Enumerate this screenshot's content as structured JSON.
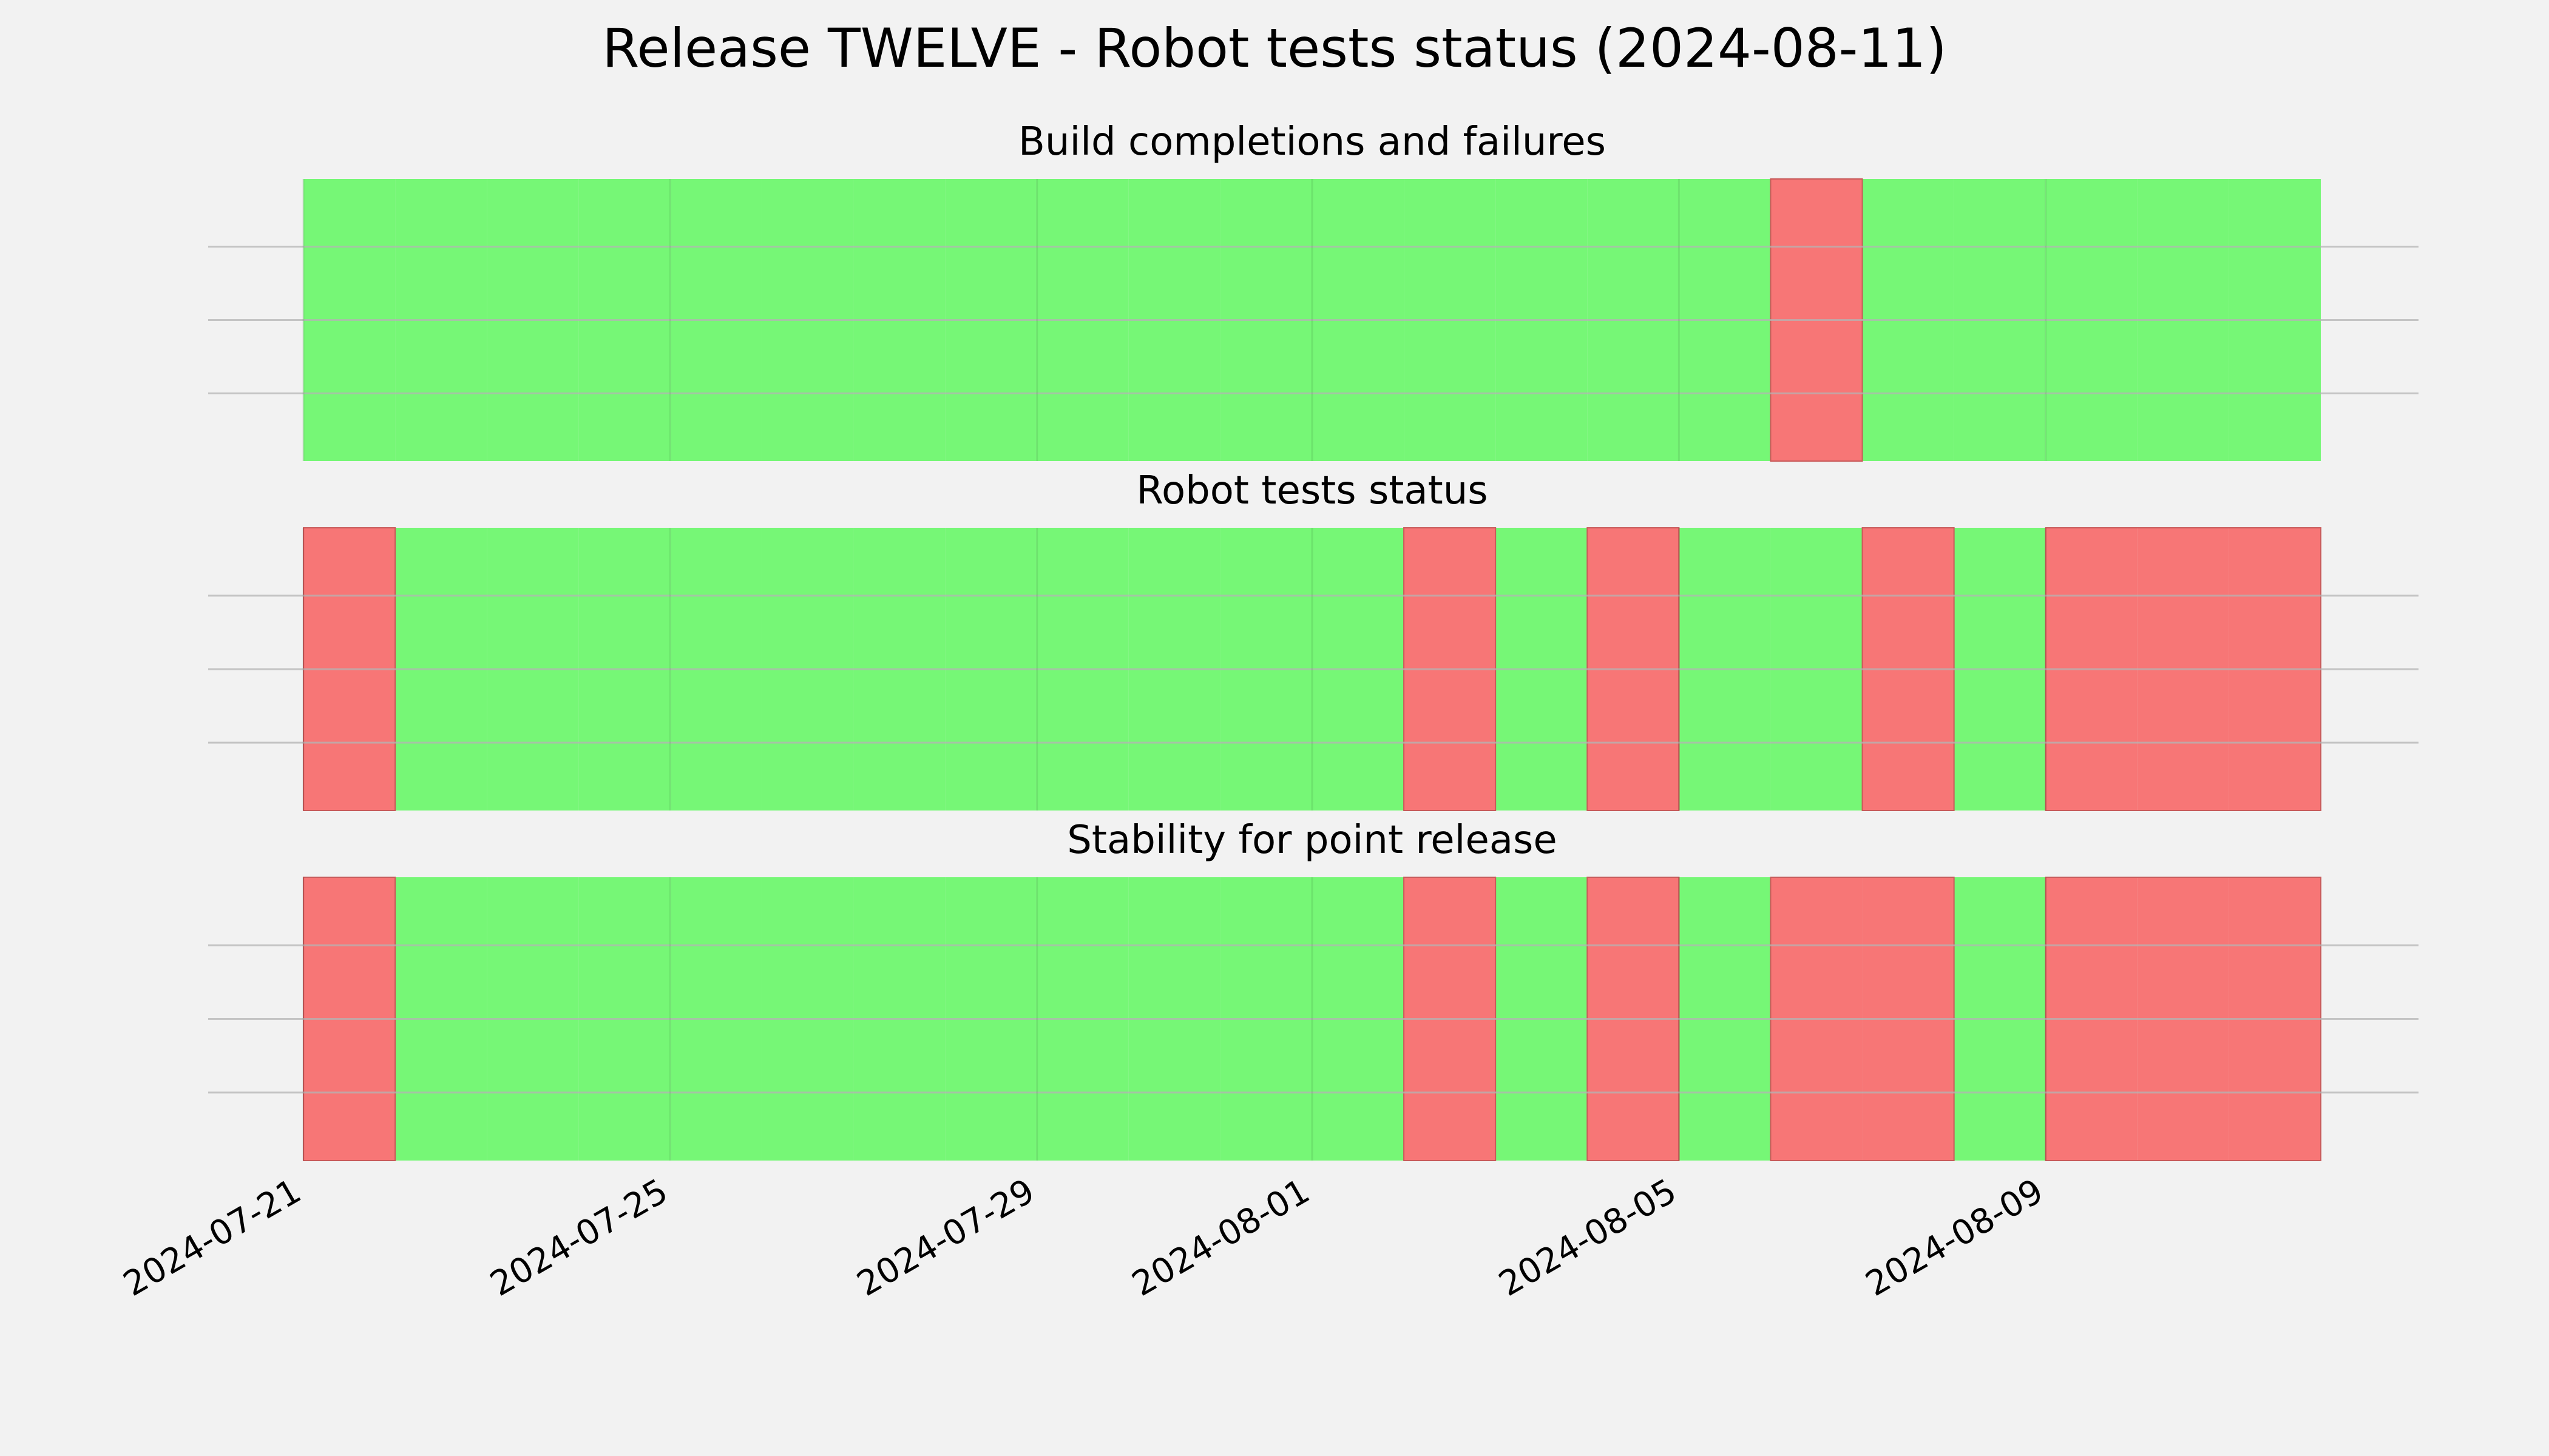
{
  "chart_data": {
    "type": "bar",
    "title": "Release TWELVE - Robot tests status (2024-08-11)",
    "start_date": "2024-07-21",
    "end_date": "2024-08-12",
    "x_ticks": [
      "2024-07-21",
      "2024-07-25",
      "2024-07-29",
      "2024-08-01",
      "2024-08-05",
      "2024-08-09"
    ],
    "status_colors": {
      "pass": "#76f776",
      "fail": "#f77676"
    },
    "grid": true,
    "panels": [
      {
        "title": "Build completions and failures",
        "days": [
          {
            "date": "2024-07-21",
            "status": "pass"
          },
          {
            "date": "2024-07-22",
            "status": "pass"
          },
          {
            "date": "2024-07-23",
            "status": "pass"
          },
          {
            "date": "2024-07-24",
            "status": "pass"
          },
          {
            "date": "2024-07-25",
            "status": "pass"
          },
          {
            "date": "2024-07-26",
            "status": "pass"
          },
          {
            "date": "2024-07-27",
            "status": "pass"
          },
          {
            "date": "2024-07-28",
            "status": "pass"
          },
          {
            "date": "2024-07-29",
            "status": "pass"
          },
          {
            "date": "2024-07-30",
            "status": "pass"
          },
          {
            "date": "2024-07-31",
            "status": "pass"
          },
          {
            "date": "2024-08-01",
            "status": "pass"
          },
          {
            "date": "2024-08-02",
            "status": "pass"
          },
          {
            "date": "2024-08-03",
            "status": "pass"
          },
          {
            "date": "2024-08-04",
            "status": "pass"
          },
          {
            "date": "2024-08-05",
            "status": "pass"
          },
          {
            "date": "2024-08-06",
            "status": "fail"
          },
          {
            "date": "2024-08-07",
            "status": "pass"
          },
          {
            "date": "2024-08-08",
            "status": "pass"
          },
          {
            "date": "2024-08-09",
            "status": "pass"
          },
          {
            "date": "2024-08-10",
            "status": "pass"
          },
          {
            "date": "2024-08-11",
            "status": "pass"
          }
        ]
      },
      {
        "title": "Robot tests status",
        "days": [
          {
            "date": "2024-07-21",
            "status": "fail"
          },
          {
            "date": "2024-07-22",
            "status": "pass"
          },
          {
            "date": "2024-07-23",
            "status": "pass"
          },
          {
            "date": "2024-07-24",
            "status": "pass"
          },
          {
            "date": "2024-07-25",
            "status": "pass"
          },
          {
            "date": "2024-07-26",
            "status": "pass"
          },
          {
            "date": "2024-07-27",
            "status": "pass"
          },
          {
            "date": "2024-07-28",
            "status": "pass"
          },
          {
            "date": "2024-07-29",
            "status": "pass"
          },
          {
            "date": "2024-07-30",
            "status": "pass"
          },
          {
            "date": "2024-07-31",
            "status": "pass"
          },
          {
            "date": "2024-08-01",
            "status": "pass"
          },
          {
            "date": "2024-08-02",
            "status": "fail"
          },
          {
            "date": "2024-08-03",
            "status": "pass"
          },
          {
            "date": "2024-08-04",
            "status": "fail"
          },
          {
            "date": "2024-08-05",
            "status": "pass"
          },
          {
            "date": "2024-08-06",
            "status": "pass"
          },
          {
            "date": "2024-08-07",
            "status": "fail"
          },
          {
            "date": "2024-08-08",
            "status": "pass"
          },
          {
            "date": "2024-08-09",
            "status": "fail"
          },
          {
            "date": "2024-08-10",
            "status": "fail"
          },
          {
            "date": "2024-08-11",
            "status": "fail"
          }
        ]
      },
      {
        "title": "Stability for point release",
        "days": [
          {
            "date": "2024-07-21",
            "status": "fail"
          },
          {
            "date": "2024-07-22",
            "status": "pass"
          },
          {
            "date": "2024-07-23",
            "status": "pass"
          },
          {
            "date": "2024-07-24",
            "status": "pass"
          },
          {
            "date": "2024-07-25",
            "status": "pass"
          },
          {
            "date": "2024-07-26",
            "status": "pass"
          },
          {
            "date": "2024-07-27",
            "status": "pass"
          },
          {
            "date": "2024-07-28",
            "status": "pass"
          },
          {
            "date": "2024-07-29",
            "status": "pass"
          },
          {
            "date": "2024-07-30",
            "status": "pass"
          },
          {
            "date": "2024-07-31",
            "status": "pass"
          },
          {
            "date": "2024-08-01",
            "status": "pass"
          },
          {
            "date": "2024-08-02",
            "status": "fail"
          },
          {
            "date": "2024-08-03",
            "status": "pass"
          },
          {
            "date": "2024-08-04",
            "status": "fail"
          },
          {
            "date": "2024-08-05",
            "status": "pass"
          },
          {
            "date": "2024-08-06",
            "status": "fail"
          },
          {
            "date": "2024-08-07",
            "status": "fail"
          },
          {
            "date": "2024-08-08",
            "status": "pass"
          },
          {
            "date": "2024-08-09",
            "status": "fail"
          },
          {
            "date": "2024-08-10",
            "status": "fail"
          },
          {
            "date": "2024-08-11",
            "status": "fail"
          }
        ]
      }
    ]
  }
}
